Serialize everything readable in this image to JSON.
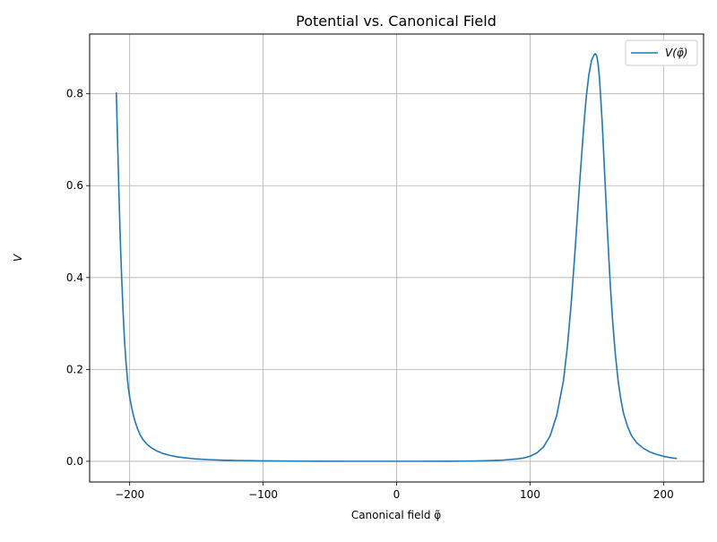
{
  "chart_data": {
    "type": "line",
    "title": "Potential vs. Canonical Field",
    "xlabel": "Canonical field φ̃",
    "ylabel": "V",
    "xlim": [
      -230,
      230
    ],
    "ylim": [
      -0.045,
      0.93
    ],
    "xticks": [
      -200,
      -100,
      0,
      100,
      200
    ],
    "xtick_labels": [
      "−200",
      "−100",
      "0",
      "100",
      "200"
    ],
    "yticks": [
      0.0,
      0.2,
      0.4,
      0.6,
      0.8
    ],
    "ytick_labels": [
      "0.0",
      "0.2",
      "0.4",
      "0.6",
      "0.8"
    ],
    "grid": true,
    "legend_position": "upper right",
    "series": [
      {
        "name": "V(φ̃)",
        "color": "#1f77b4",
        "x": [
          -210,
          -209,
          -208,
          -207,
          -206,
          -205,
          -204,
          -203,
          -202,
          -201,
          -200,
          -198,
          -196,
          -194,
          -192,
          -190,
          -187,
          -184,
          -180,
          -175,
          -170,
          -165,
          -160,
          -150,
          -140,
          -130,
          -120,
          -100,
          -80,
          -60,
          -40,
          -20,
          0,
          20,
          40,
          60,
          70,
          80,
          90,
          95,
          100,
          105,
          110,
          115,
          120,
          125,
          128,
          131,
          134,
          137,
          140,
          142,
          144,
          146,
          148,
          149,
          150,
          151,
          152,
          154,
          156,
          158,
          160,
          162,
          164,
          166,
          168,
          170,
          173,
          176,
          180,
          185,
          190,
          195,
          200,
          205,
          210
        ],
        "y": [
          0.803,
          0.69,
          0.58,
          0.48,
          0.4,
          0.33,
          0.27,
          0.225,
          0.19,
          0.16,
          0.14,
          0.11,
          0.087,
          0.07,
          0.057,
          0.047,
          0.037,
          0.03,
          0.023,
          0.017,
          0.013,
          0.01,
          0.008,
          0.005,
          0.0035,
          0.0025,
          0.0018,
          0.001,
          0.0006,
          0.0003,
          0.0001,
          0.0001,
          0.0001,
          0.0001,
          0.0002,
          0.0008,
          0.0015,
          0.0028,
          0.005,
          0.007,
          0.011,
          0.018,
          0.031,
          0.055,
          0.1,
          0.175,
          0.25,
          0.35,
          0.47,
          0.6,
          0.72,
          0.79,
          0.84,
          0.872,
          0.885,
          0.887,
          0.882,
          0.865,
          0.835,
          0.74,
          0.62,
          0.5,
          0.39,
          0.3,
          0.23,
          0.175,
          0.135,
          0.105,
          0.076,
          0.056,
          0.04,
          0.028,
          0.02,
          0.015,
          0.011,
          0.008,
          0.006
        ]
      }
    ]
  }
}
